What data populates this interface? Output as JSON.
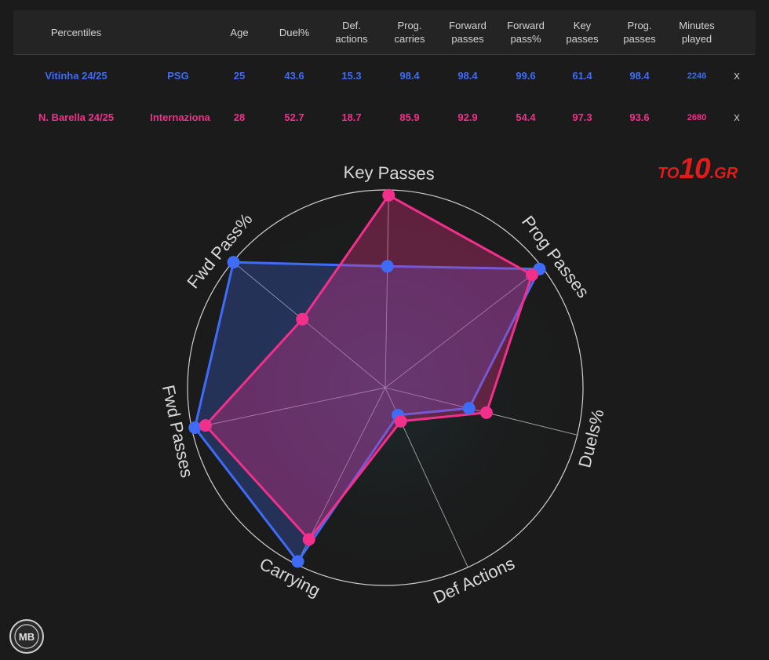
{
  "table": {
    "headers": [
      "Percentiles",
      "Age",
      "Duel%",
      "Def.\nactions",
      "Prog.\ncarries",
      "Forward\npasses",
      "Forward\npass%",
      "Key\npasses",
      "Prog.\npasses",
      "Minutes\nplayed"
    ],
    "rows": [
      {
        "player": "Vitinha 24/25",
        "team": "PSG",
        "age": "25",
        "duel": "43.6",
        "def": "15.3",
        "carries": "98.4",
        "fwd": "98.4",
        "fwdpct": "99.6",
        "key": "61.4",
        "prog": "98.4",
        "minutes": "2246",
        "remove": "x"
      },
      {
        "player": "N. Barella 24/25",
        "team": "Internaziona",
        "age": "28",
        "duel": "52.7",
        "def": "18.7",
        "carries": "85.9",
        "fwd": "92.9",
        "fwdpct": "54.4",
        "key": "97.3",
        "prog": "93.6",
        "minutes": "2680",
        "remove": "x"
      }
    ]
  },
  "logo": {
    "part1": "TO",
    "part2": "10",
    "part3": ".GR"
  },
  "badge": {
    "text": "MB"
  },
  "chart_data": {
    "type": "radar",
    "axes": [
      "Key Passes",
      "Prog Passes",
      "Duels%",
      "Def Actions",
      "Carrying",
      "Fwd Passes",
      "Fwd Pass%"
    ],
    "range": [
      0,
      100
    ],
    "series": [
      {
        "name": "Vitinha 24/25",
        "color": "#3f6cf6",
        "values": [
          61.4,
          98.4,
          43.6,
          15.3,
          98.4,
          98.4,
          99.6
        ]
      },
      {
        "name": "N. Barella 24/25",
        "color": "#f0308a",
        "values": [
          97.3,
          93.6,
          52.7,
          18.7,
          85.9,
          92.9,
          54.4
        ]
      }
    ]
  }
}
